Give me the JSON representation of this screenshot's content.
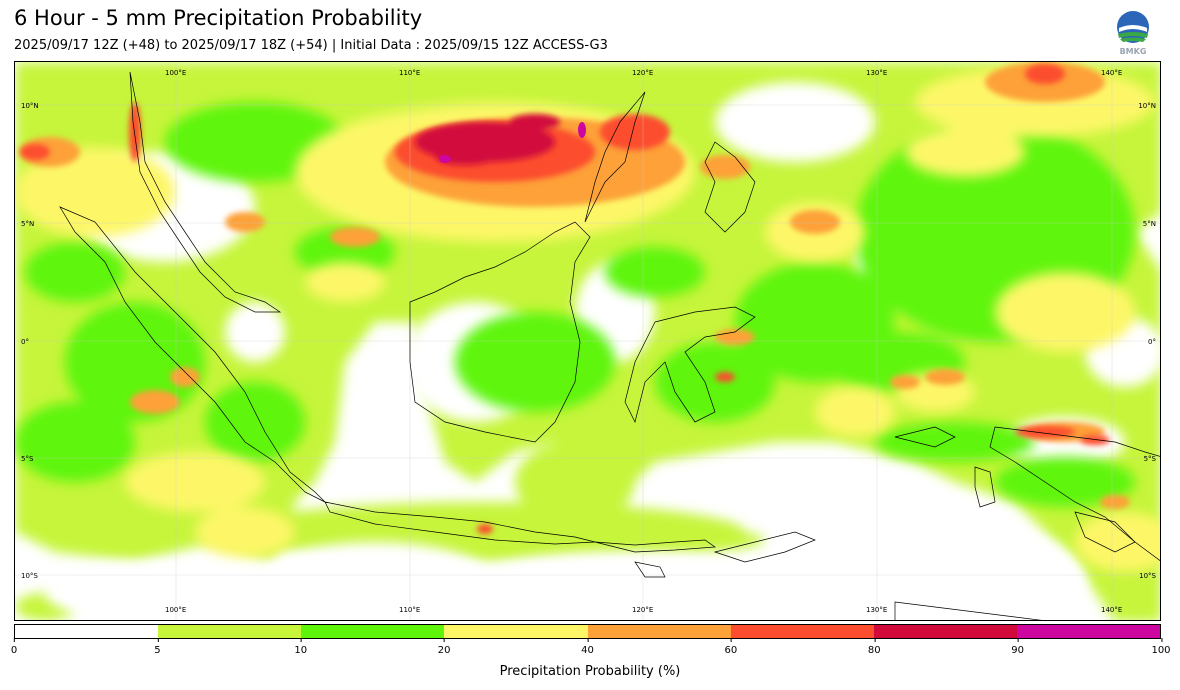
{
  "header": {
    "title": "6 Hour - 5 mm Precipitation Probability",
    "subtitle": "2025/09/17 12Z (+48) to 2025/09/17 18Z (+54) | Initial Data : 2025/09/15 12Z ACCESS-G3"
  },
  "logo": {
    "icon": "bmkg-logo",
    "text": "BMKG"
  },
  "map": {
    "lon_range": [
      94,
      143
    ],
    "lat_range": [
      -12,
      12
    ],
    "lon_labels": [
      "100°E",
      "110°E",
      "120°E",
      "130°E",
      "140°E"
    ],
    "lat_labels": [
      "10°N",
      "5°N",
      "0°",
      "5°S",
      "10°S"
    ]
  },
  "colorbar": {
    "label": "Precipitation Probability (%)",
    "ticks": [
      "0",
      "5",
      "10",
      "20",
      "40",
      "60",
      "80",
      "90",
      "100"
    ],
    "colors": [
      "#ffffff",
      "#c6f53a",
      "#5ef50a",
      "#fdf767",
      "#fda138",
      "#fc4d2f",
      "#d20a3c",
      "#cc069e"
    ]
  }
}
